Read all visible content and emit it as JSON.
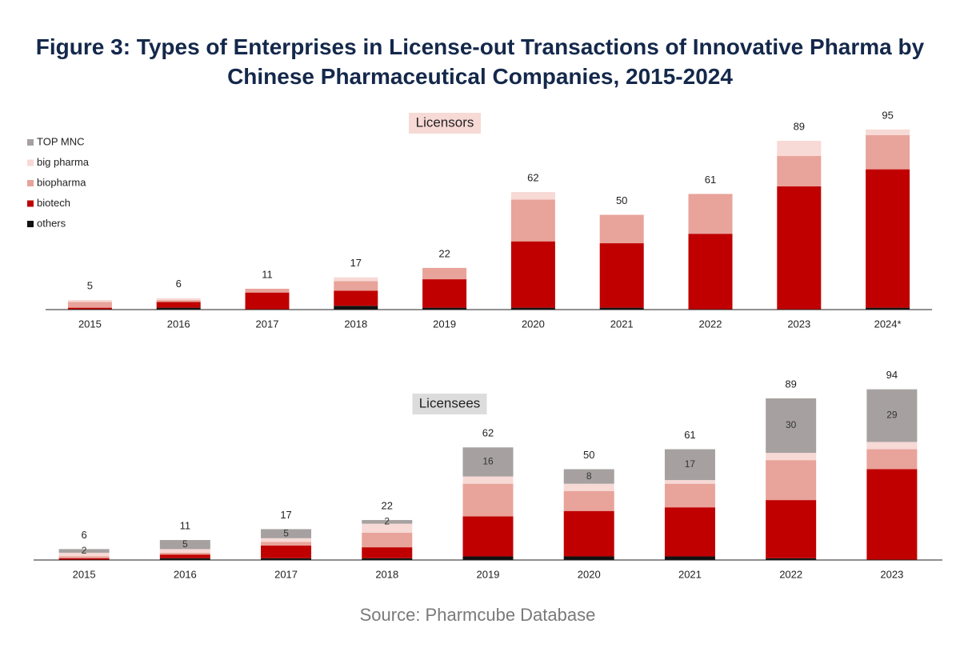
{
  "title": "Figure 3: Types of Enterprises in License-out Transactions of Innovative Pharma by Chinese Pharmaceutical Companies, 2015-2024",
  "source": "Source: Pharmcube Database",
  "chart_data": [
    {
      "type": "bar",
      "stacked": true,
      "title": "Licensors",
      "title_background": "#f7d9d5",
      "legend": "upper left",
      "categories": [
        "2015",
        "2016",
        "2017",
        "2018",
        "2019",
        "2020",
        "2021",
        "2022",
        "2023",
        "2024*"
      ],
      "ylim": [
        0,
        100
      ],
      "totals": [
        5,
        6,
        11,
        17,
        22,
        62,
        50,
        61,
        89,
        95
      ],
      "series": [
        {
          "name": "others",
          "color": "#111111",
          "values": [
            0,
            1,
            0,
            2,
            1,
            1,
            1,
            0,
            0,
            1
          ]
        },
        {
          "name": "biotech",
          "color": "#c00000",
          "values": [
            1,
            3,
            9,
            8,
            15,
            35,
            34,
            40,
            65,
            73
          ]
        },
        {
          "name": "biopharma",
          "color": "#e8a39a",
          "values": [
            3,
            1,
            2,
            5,
            6,
            22,
            15,
            21,
            16,
            18
          ]
        },
        {
          "name": "big pharma",
          "color": "#f7d9d5",
          "values": [
            1,
            1,
            0,
            2,
            0,
            4,
            0,
            0,
            8,
            3
          ]
        },
        {
          "name": "TOP MNC",
          "color": "#a6a1a0",
          "values": [
            0,
            0,
            0,
            0,
            0,
            0,
            0,
            0,
            0,
            0
          ]
        }
      ]
    },
    {
      "type": "bar",
      "stacked": true,
      "title": "Licensees",
      "title_background": "#dcdcdc",
      "categories": [
        "2015",
        "2016",
        "2017",
        "2018",
        "2019",
        "2020",
        "2021",
        "2022",
        "2023"
      ],
      "ylim": [
        0,
        100
      ],
      "totals": [
        6,
        11,
        17,
        22,
        62,
        50,
        61,
        89,
        94
      ],
      "series": [
        {
          "name": "others",
          "color": "#111111",
          "values": [
            0,
            1,
            1,
            1,
            2,
            2,
            2,
            1,
            0
          ]
        },
        {
          "name": "biotech",
          "color": "#c00000",
          "values": [
            1,
            2,
            7,
            6,
            22,
            25,
            27,
            32,
            50
          ]
        },
        {
          "name": "biopharma",
          "color": "#e8a39a",
          "values": [
            1,
            1,
            2,
            8,
            18,
            11,
            13,
            22,
            11
          ]
        },
        {
          "name": "big pharma",
          "color": "#f7d9d5",
          "values": [
            2,
            2,
            2,
            5,
            4,
            4,
            2,
            4,
            4
          ]
        },
        {
          "name": "TOP MNC",
          "color": "#a6a1a0",
          "labels": true,
          "values": [
            2,
            5,
            5,
            2,
            16,
            8,
            17,
            30,
            29
          ]
        }
      ]
    }
  ]
}
